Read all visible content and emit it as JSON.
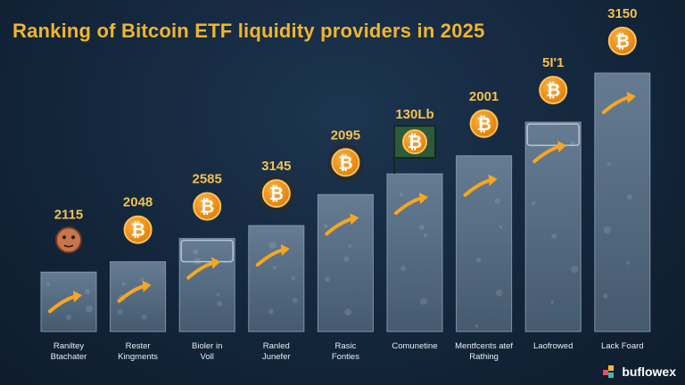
{
  "chart_data": {
    "type": "bar",
    "title": "Ranking of Bitcoin ETF liquidity providers in 2025",
    "categories": [
      [
        "Raniltey",
        "Btachater"
      ],
      [
        "Rester",
        "Kingments"
      ],
      [
        "Bioler in",
        "Voll"
      ],
      [
        "Ranled",
        "Junefer"
      ],
      [
        "Rasic",
        "Fonties"
      ],
      [
        "Comunetine"
      ],
      [
        "Mentfcents atef",
        "Rathing"
      ],
      [
        "Laofrowed"
      ],
      [
        "Lack Foard"
      ]
    ],
    "value_labels": [
      "2115",
      "2048",
      "2585",
      "3145",
      "2095",
      "130Lb",
      "2001",
      "5I'1",
      "3150"
    ],
    "relative_heights": [
      0.23,
      0.27,
      0.36,
      0.41,
      0.53,
      0.61,
      0.68,
      0.81,
      1.0
    ],
    "colors": {
      "bar": "#5d7389",
      "bar_edge": "#8a9db0",
      "coin": "#f7931a",
      "coin_ring": "#ffc35a",
      "arrow": "#f5a623",
      "value_text": "#f2c14e",
      "title": "#f2b52a"
    },
    "markers": [
      "face",
      "coin",
      "coin",
      "coin-ring",
      "coin-ring",
      "coin-flag",
      "coin",
      "coin",
      "coin"
    ],
    "icons": {
      "coin": "bitcoin-icon",
      "arrow": "up-trend-arrow-icon",
      "face": "person-avatar-icon"
    }
  },
  "branding": {
    "text": "buflowex"
  }
}
